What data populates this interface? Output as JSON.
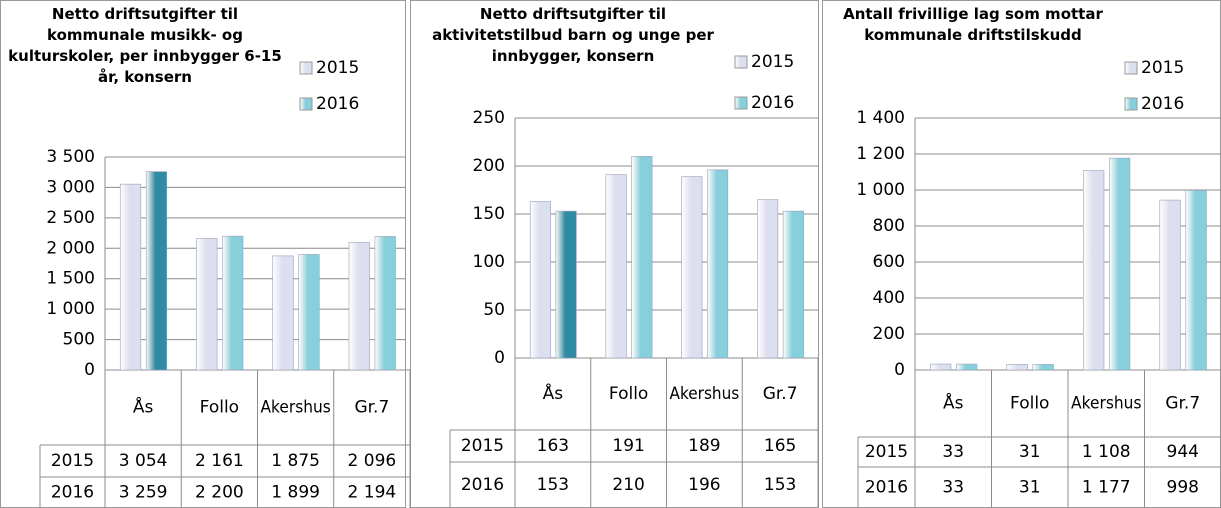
{
  "chart_data": [
    {
      "type": "bar",
      "title": "Netto driftsutgifter til kommunale musikk- og kulturskoler, per innbygger 6-15 år, konsern",
      "categories": [
        "Ås",
        "Follo",
        "Akershus",
        "Gr.7"
      ],
      "series": [
        {
          "name": "2015",
          "color": "#dcdff0",
          "values": [
            3054,
            2161,
            1875,
            2096
          ],
          "value_labels": [
            "3 054",
            "2 161",
            "1 875",
            "2 096"
          ]
        },
        {
          "name": "2016",
          "color": "#86cfdb",
          "colors": [
            "#2f8aa3",
            "#86cfdb",
            "#86cfdb",
            "#86cfdb"
          ],
          "values": [
            3259,
            2200,
            1899,
            2194
          ],
          "value_labels": [
            "3 259",
            "2 200",
            "1 899",
            "2 194"
          ]
        }
      ],
      "ylim": [
        0,
        3500
      ],
      "yticks": [
        0,
        500,
        {
          "value": 1000,
          "label": "1 000"
        },
        {
          "value": 1500,
          "label": "1 500"
        },
        {
          "value": 2000,
          "label": "2 000"
        },
        {
          "value": 2500,
          "label": "2 500"
        },
        {
          "value": 3000,
          "label": "3 000"
        },
        {
          "value": 3500,
          "label": "3 500"
        }
      ],
      "grid": true
    },
    {
      "type": "bar",
      "title": "Netto driftsutgifter til aktivitetstilbud barn og unge per innbygger, konsern",
      "categories": [
        "Ås",
        "Follo",
        "Akershus",
        "Gr.7"
      ],
      "series": [
        {
          "name": "2015",
          "color": "#dcdff0",
          "values": [
            163,
            191,
            189,
            165
          ]
        },
        {
          "name": "2016",
          "color": "#86cfdb",
          "colors": [
            "#2f8aa3",
            "#86cfdb",
            "#86cfdb",
            "#86cfdb"
          ],
          "values": [
            153,
            210,
            196,
            153
          ]
        }
      ],
      "ylim": [
        0,
        250
      ],
      "yticks": [
        0,
        50,
        100,
        150,
        200,
        250
      ],
      "grid": true
    },
    {
      "type": "bar",
      "title": "Antall frivillige lag som mottar kommunale driftstilskudd",
      "categories": [
        "Ås",
        "Follo",
        "Akershus",
        "Gr.7"
      ],
      "series": [
        {
          "name": "2015",
          "color": "#dcdff0",
          "values": [
            33,
            31,
            1108,
            944
          ],
          "value_labels": [
            "33",
            "31",
            "1 108",
            "944"
          ]
        },
        {
          "name": "2016",
          "color": "#86cfdb",
          "values": [
            33,
            31,
            1177,
            998
          ],
          "value_labels": [
            "33",
            "31",
            "1 177",
            "998"
          ]
        }
      ],
      "ylim": [
        0,
        1400
      ],
      "yticks": [
        0,
        200,
        400,
        600,
        800,
        {
          "value": 1000,
          "label": "1 000"
        },
        {
          "value": 1200,
          "label": "1 200"
        },
        {
          "value": 1400,
          "label": "1 400"
        }
      ],
      "grid": true
    }
  ]
}
